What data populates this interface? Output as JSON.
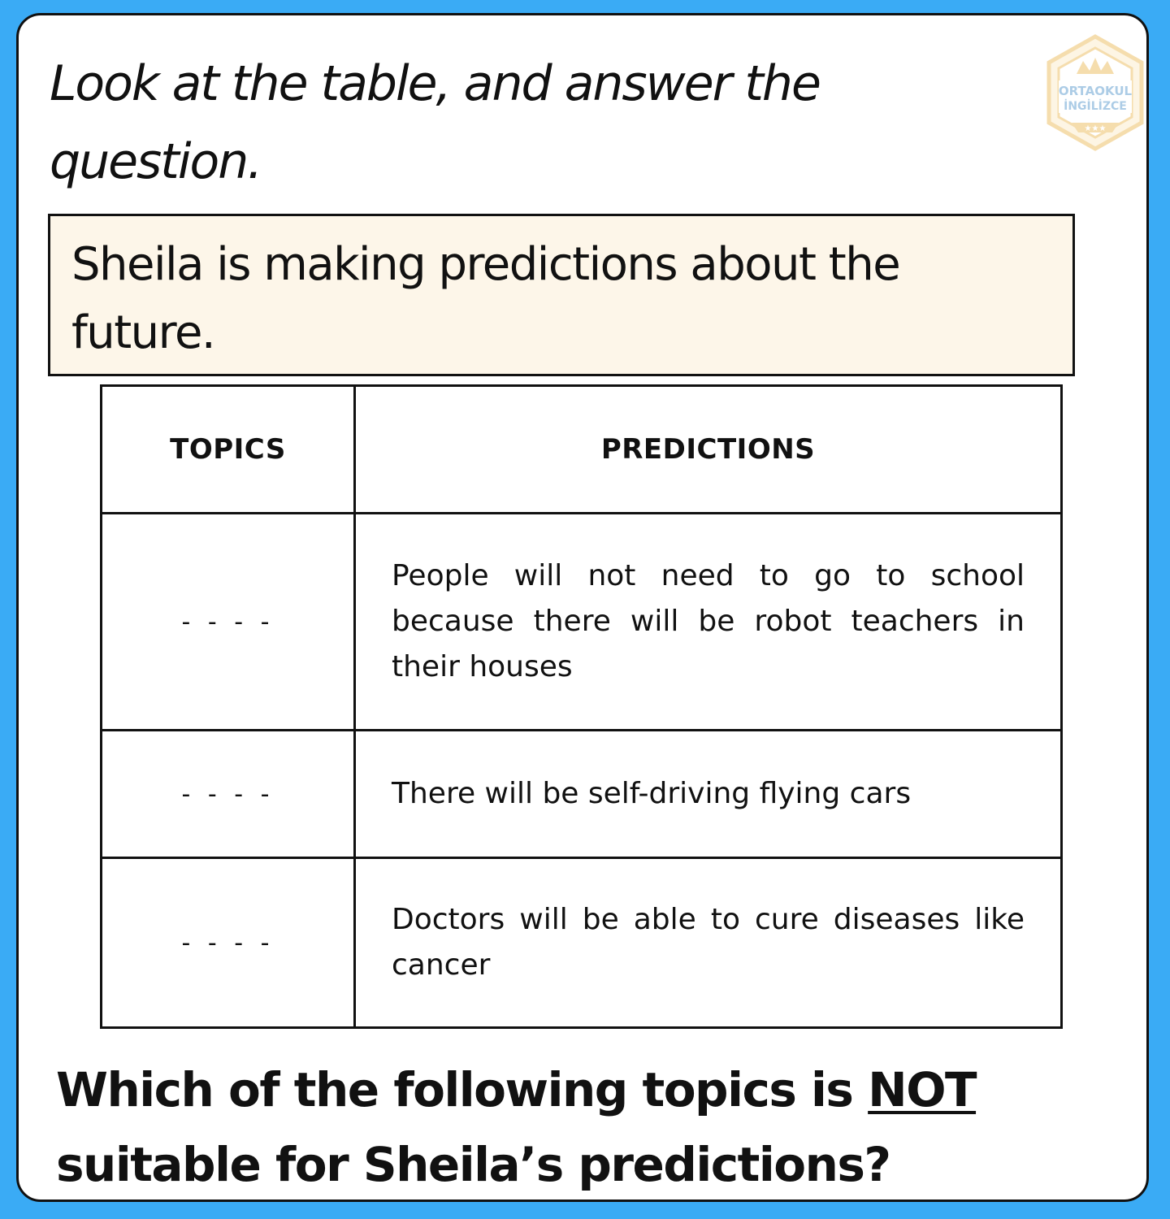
{
  "instruction": "Look at the table, and answer the question.",
  "logo": {
    "line1": "ORTAOKUL",
    "line2": "İNGİLİZCE",
    "icon": "crown-hexagon-badge",
    "color": "#e9b44c"
  },
  "context": "Sheila is making predictions about the future.",
  "table": {
    "headers": [
      "TOPICS",
      "PREDICTIONS"
    ],
    "rows": [
      {
        "topic": "- - - -",
        "prediction": "People will not need to go to school because there will be robot teachers in their houses"
      },
      {
        "topic": "- - - -",
        "prediction": "There will be self-driving flying cars"
      },
      {
        "topic": "- - - -",
        "prediction": "Doctors will be able to cure diseases like cancer"
      }
    ]
  },
  "question": {
    "before": "Which of the following topics is ",
    "emphasis": "NOT",
    "after": " suitable for Sheila’s predictions?"
  },
  "colors": {
    "background": "#3aabf5",
    "card": "#ffffff",
    "context_box": "#fdf6e9"
  }
}
